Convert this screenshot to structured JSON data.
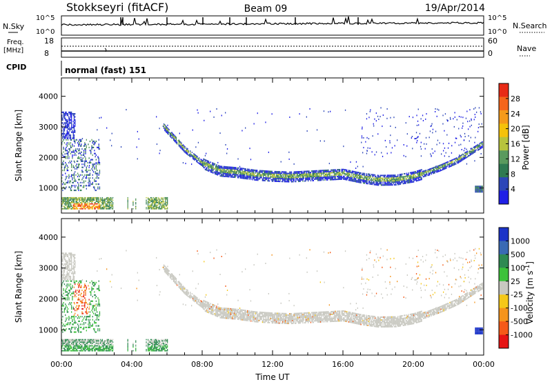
{
  "header": {
    "radar": "Stokkseyri (fitACF)",
    "beam": "Beam 09",
    "date": "19/Apr/2014"
  },
  "strip_panels": {
    "nsky_label": "N.Sky",
    "nsky_ticks": [
      "10^5",
      "10^0"
    ],
    "nsearch_label": "N.Search",
    "nsearch_ticks": [
      "10^5",
      "10^0"
    ],
    "freq_label": "Freq.",
    "freq_unit": "[MHz]",
    "freq_ticks": [
      "18",
      "8"
    ],
    "nave_label": "Nave",
    "nave_ticks": [
      "60",
      "0"
    ],
    "cpid_label": "CPID",
    "cpid_value": "normal (fast) 151"
  },
  "chart_data": [
    {
      "type": "heatmap",
      "panel": "power",
      "ylabel": "Slant Range [km]",
      "ylim": [
        180,
        4600
      ],
      "yticks": [
        1000,
        2000,
        3000,
        4000
      ],
      "xlim": [
        0,
        24
      ],
      "colorbar": {
        "label": "Power [dB]",
        "range": [
          0,
          32
        ],
        "ticks": [
          4,
          8,
          12,
          16,
          20,
          24,
          28
        ],
        "colors": [
          "#1f1fe6",
          "#2c46b8",
          "#2f7a52",
          "#5a9a5e",
          "#b7c33c",
          "#f5c20a",
          "#f59a1a",
          "#f5651a",
          "#e82a16"
        ]
      },
      "features": [
        {
          "name": "main-arc",
          "t": [
            5.8,
            7,
            8,
            9,
            10,
            11,
            12,
            13,
            14,
            15,
            16,
            17,
            18,
            19,
            20,
            20.8,
            21.5,
            22.5,
            23.3,
            24
          ],
          "range": [
            3000,
            2250,
            1800,
            1550,
            1500,
            1420,
            1380,
            1360,
            1390,
            1420,
            1450,
            1330,
            1250,
            1260,
            1360,
            1500,
            1650,
            1900,
            2200,
            2450
          ]
        },
        {
          "name": "near-range-band",
          "t": [
            0,
            6
          ],
          "range": [
            300,
            650
          ]
        }
      ]
    },
    {
      "type": "heatmap",
      "panel": "velocity",
      "ylabel": "Slant Range [km]",
      "xlabel": "Time UT",
      "ylim": [
        180,
        4600
      ],
      "yticks": [
        1000,
        2000,
        3000,
        4000
      ],
      "xlim": [
        0,
        24
      ],
      "xticks": [
        "00:00",
        "04:00",
        "08:00",
        "12:00",
        "16:00",
        "20:00",
        "00:00"
      ],
      "colorbar": {
        "label": "Velocity [m s",
        "label_sup": "-1",
        "label_end": "]",
        "ticks": [
          "1000",
          "500",
          "100",
          "25",
          "-25",
          "-100",
          "-500",
          "-1000"
        ],
        "colors": [
          "#1c34c8",
          "#3a6ab4",
          "#2e8a52",
          "#3cc23a",
          "#c8c8c0",
          "#f5c818",
          "#f5941c",
          "#f55a18",
          "#e61414"
        ]
      }
    }
  ]
}
